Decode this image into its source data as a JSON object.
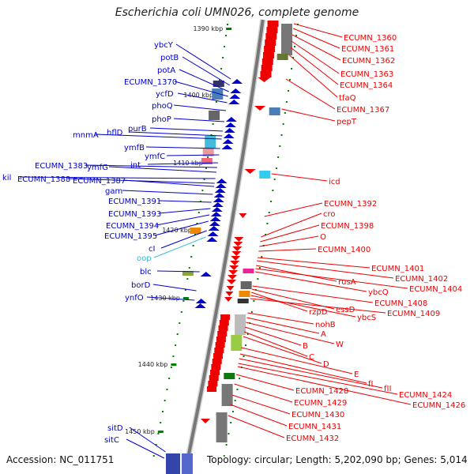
{
  "title": "Escherichia coli UMN026, complete genome",
  "footer": {
    "accession": "Accession: NC_011751",
    "summary": "Topology: circular; Length: 5,202,090 bp; Genes: 5,014"
  },
  "colors": {
    "forward": "#0000cc",
    "reverse": "#ee0000",
    "backbone": "#888888",
    "tick": "#008000",
    "other": "#33bbdd"
  },
  "kbp_labels": [
    "1390 kbp",
    "1400 kbp",
    "1410 kbp",
    "1420 kbp",
    "1430 kbp",
    "1440 kbp",
    "1450 kbp"
  ],
  "left_genes": [
    "ybcY",
    "potB",
    "potA",
    "ECUMN_1370",
    "ycfD",
    "phoQ",
    "phoP",
    "purB",
    "hflD",
    "mnmA",
    "ymfB",
    "ymfC",
    "int",
    "ECUMN_1383",
    "ymfG",
    "kil",
    "ECUMN_1388",
    "ECUMN_1387",
    "gam",
    "ECUMN_1391",
    "ECUMN_1393",
    "ECUMN_1394",
    "ECUMN_1395",
    "cI",
    "oop",
    "blc",
    "borD",
    "ynfO",
    "sitD",
    "sitC"
  ],
  "right_genes": [
    "ECUMN_1360",
    "ECUMN_1361",
    "ECUMN_1362",
    "ECUMN_1363",
    "ECUMN_1364",
    "tfaQ",
    "ECUMN_1367",
    "pepT",
    "icd",
    "ECUMN_1392",
    "cro",
    "ECUMN_1398",
    "O",
    "ECUMN_1400",
    "ECUMN_1401",
    "ECUMN_1402",
    "rusA",
    "ECUMN_1404",
    "ybcQ",
    "ECUMN_1408",
    "essD",
    "rzpD",
    "ybcS",
    "ECUMN_1409",
    "nohB",
    "A",
    "W",
    "B",
    "C",
    "D",
    "E",
    "fI",
    "fII",
    "ECUMN_1424",
    "ECUMN_1426",
    "ECUMN_1428",
    "ECUMN_1429",
    "ECUMN_1430",
    "ECUMN_1431",
    "ECUMN_1432"
  ]
}
